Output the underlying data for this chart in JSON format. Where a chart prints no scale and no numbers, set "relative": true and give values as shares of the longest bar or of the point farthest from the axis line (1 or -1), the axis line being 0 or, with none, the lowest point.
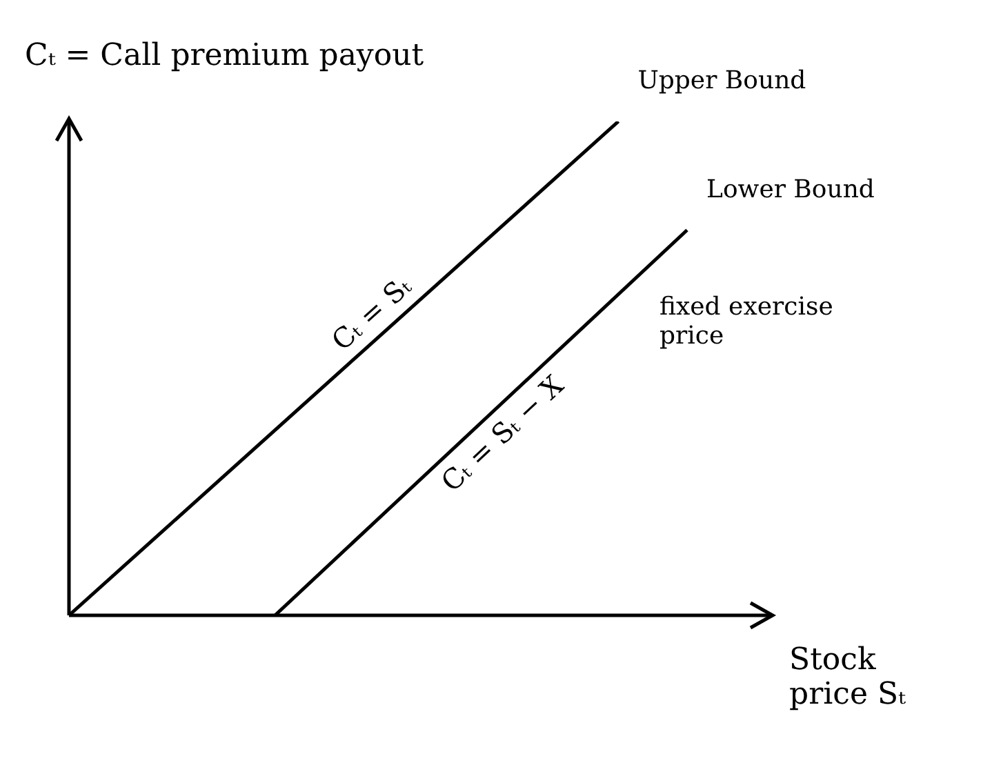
{
  "chart_data": {
    "type": "line",
    "relative": true,
    "xlabel": "Stock price Sₜ",
    "ylabel": "Cₜ = Call premium payout",
    "categories": [
      null,
      null,
      null,
      null,
      null,
      null,
      null,
      null,
      null,
      null
    ],
    "grid": false,
    "legend": false,
    "marker": "none",
    "line_style": "solid",
    "series": [
      {
        "name": "Cₜ = Sₜ",
        "color": "#000000",
        "values": [
          0,
          null,
          null,
          null,
          null,
          null,
          null,
          null,
          1,
          null
        ]
      },
      {
        "name": "Cₜ = Sₜ − X",
        "color": "#000000",
        "values": [
          null,
          null,
          null,
          0,
          null,
          null,
          null,
          null,
          null,
          0.78
        ]
      }
    ],
    "annotations": [
      "Upper Bound",
      "Lower Bound",
      "fixed exercise price"
    ]
  }
}
